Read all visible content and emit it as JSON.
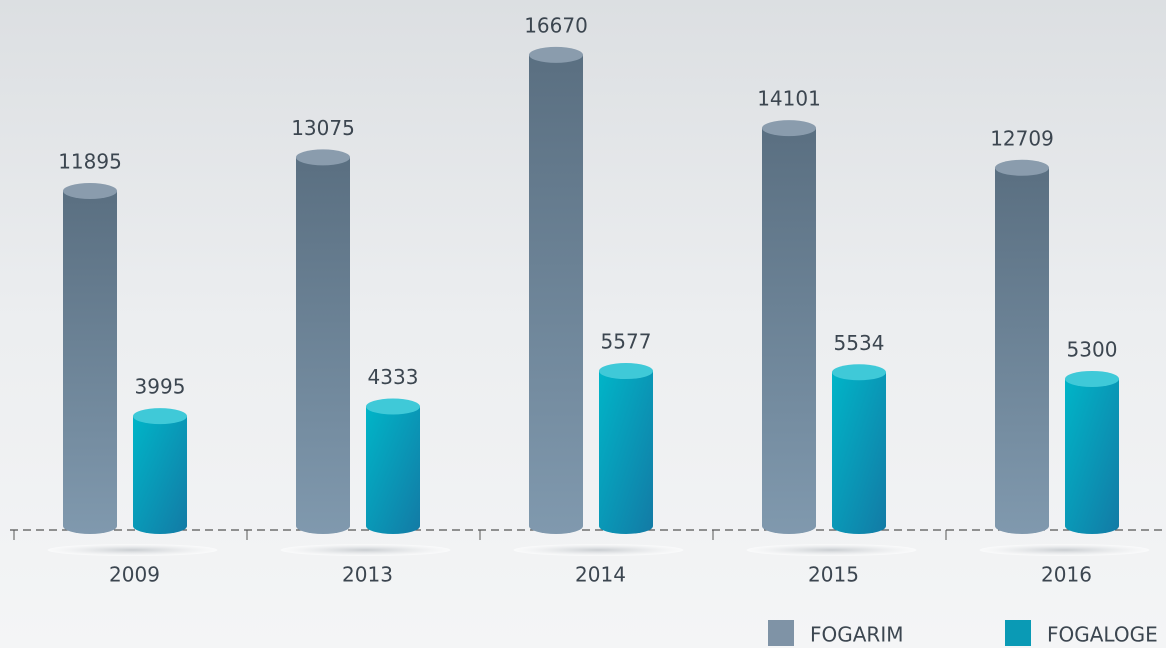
{
  "chart_data": {
    "type": "bar",
    "categories": [
      "2009",
      "2013",
      "2014",
      "2015",
      "2016"
    ],
    "series": [
      {
        "name": "FOGARIM",
        "color": "#6f879c",
        "values": [
          11895,
          13075,
          16670,
          14101,
          12709
        ]
      },
      {
        "name": "FOGALOGE",
        "color": "#0a9ab5",
        "values": [
          3995,
          4333,
          5577,
          5534,
          5300
        ]
      }
    ]
  }
}
